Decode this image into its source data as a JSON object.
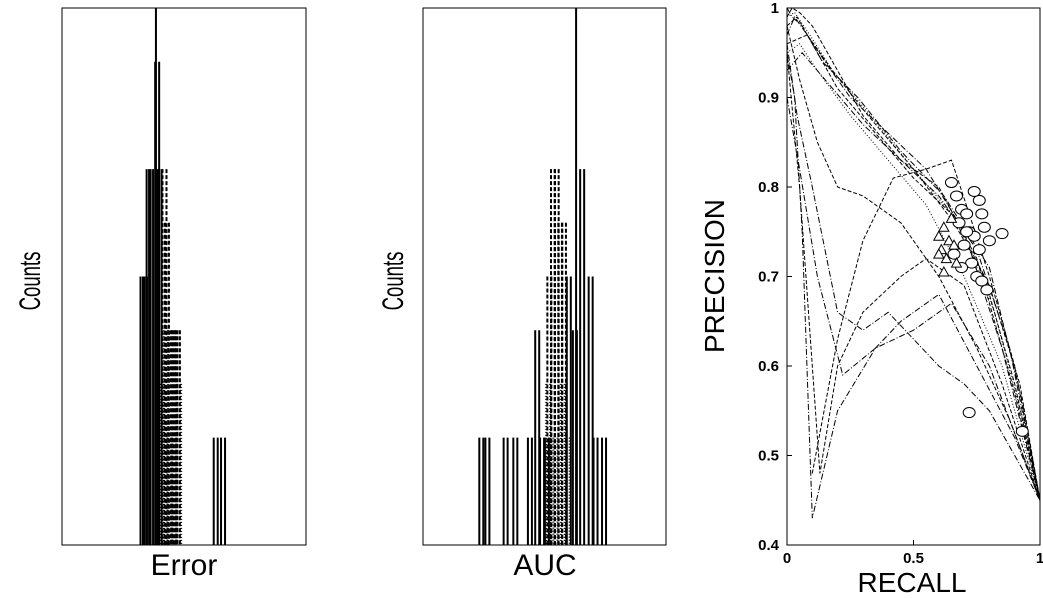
{
  "chart_data": [
    {
      "type": "histogram",
      "xlabel": "Error",
      "ylabel": "Counts",
      "ticks": "none",
      "reference_line": 0.385,
      "series": [
        {
          "style": "solid",
          "bars": [
            {
              "x": 0.33,
              "count": 5
            },
            {
              "x": 0.34,
              "count": 5
            },
            {
              "x": 0.355,
              "count": 7
            },
            {
              "x": 0.365,
              "count": 7
            },
            {
              "x": 0.39,
              "count": 9
            },
            {
              "x": 0.4,
              "count": 7
            },
            {
              "x": 0.63,
              "count": 2
            },
            {
              "x": 0.66,
              "count": 2
            }
          ]
        },
        {
          "style": "dashed",
          "bars": [
            {
              "x": 0.42,
              "count": 7
            },
            {
              "x": 0.43,
              "count": 6
            },
            {
              "x": 0.445,
              "count": 4
            },
            {
              "x": 0.455,
              "count": 4
            },
            {
              "x": 0.465,
              "count": 4
            },
            {
              "x": 0.475,
              "count": 4
            }
          ]
        },
        {
          "style": "dotted",
          "bars": [
            {
              "x": 0.41,
              "count": 3
            },
            {
              "x": 0.425,
              "count": 4
            },
            {
              "x": 0.44,
              "count": 2
            },
            {
              "x": 0.46,
              "count": 2
            },
            {
              "x": 0.48,
              "count": 3
            }
          ]
        }
      ]
    },
    {
      "type": "histogram",
      "xlabel": "AUC",
      "ylabel": "Counts",
      "ticks": "none",
      "reference_line": 0.63,
      "series": [
        {
          "style": "solid",
          "bars": [
            {
              "x": 0.24,
              "count": 2
            },
            {
              "x": 0.265,
              "count": 2
            },
            {
              "x": 0.34,
              "count": 2
            },
            {
              "x": 0.38,
              "count": 2
            },
            {
              "x": 0.44,
              "count": 2
            },
            {
              "x": 0.47,
              "count": 4
            },
            {
              "x": 0.49,
              "count": 2
            },
            {
              "x": 0.51,
              "count": 2
            },
            {
              "x": 0.6,
              "count": 5
            },
            {
              "x": 0.625,
              "count": 4
            },
            {
              "x": 0.655,
              "count": 7
            },
            {
              "x": 0.69,
              "count": 5
            },
            {
              "x": 0.71,
              "count": 2
            },
            {
              "x": 0.745,
              "count": 2
            }
          ]
        },
        {
          "style": "dashed",
          "bars": [
            {
              "x": 0.52,
              "count": 5
            },
            {
              "x": 0.535,
              "count": 7
            },
            {
              "x": 0.55,
              "count": 7
            },
            {
              "x": 0.565,
              "count": 6
            },
            {
              "x": 0.58,
              "count": 6
            }
          ]
        },
        {
          "style": "dotted",
          "bars": [
            {
              "x": 0.515,
              "count": 3
            },
            {
              "x": 0.545,
              "count": 2
            },
            {
              "x": 0.575,
              "count": 3
            },
            {
              "x": 0.595,
              "count": 2
            }
          ]
        }
      ]
    },
    {
      "type": "line",
      "xlabel": "RECALL",
      "ylabel": "PRECISION",
      "xlim": [
        0,
        1
      ],
      "ylim": [
        0.4,
        1
      ],
      "xticks": [
        "0",
        "0.5",
        "1"
      ],
      "yticks": [
        "0.4",
        "0.5",
        "0.6",
        "0.7",
        "0.8",
        "0.9",
        "1"
      ],
      "series": [
        {
          "style": "dashed",
          "x": [
            0,
            0.02,
            0.05,
            0.1,
            0.2,
            0.3,
            0.45,
            0.6,
            0.75,
            0.9,
            1.0
          ],
          "y": [
            0.99,
            1.0,
            0.995,
            0.98,
            0.93,
            0.88,
            0.83,
            0.8,
            0.72,
            0.57,
            0.45
          ]
        },
        {
          "style": "dashdot",
          "x": [
            0,
            0.03,
            0.08,
            0.15,
            0.25,
            0.4,
            0.55,
            0.7,
            0.85,
            1.0
          ],
          "y": [
            0.97,
            0.99,
            0.97,
            0.94,
            0.9,
            0.86,
            0.82,
            0.75,
            0.62,
            0.45
          ]
        },
        {
          "style": "dotted",
          "x": [
            0,
            0.05,
            0.12,
            0.25,
            0.4,
            0.55,
            0.7,
            0.85,
            1.0
          ],
          "y": [
            0.95,
            0.96,
            0.93,
            0.88,
            0.83,
            0.78,
            0.7,
            0.6,
            0.45
          ]
        },
        {
          "style": "dashed",
          "x": [
            0,
            0.04,
            0.1,
            0.2,
            0.35,
            0.5,
            0.65,
            0.8,
            0.92,
            1.0
          ],
          "y": [
            0.98,
            0.99,
            0.96,
            0.91,
            0.86,
            0.81,
            0.77,
            0.69,
            0.58,
            0.45
          ]
        },
        {
          "style": "dashdot",
          "x": [
            0,
            0.06,
            0.15,
            0.3,
            0.45,
            0.6,
            0.75,
            0.88,
            1.0
          ],
          "y": [
            0.93,
            0.95,
            0.92,
            0.87,
            0.83,
            0.79,
            0.73,
            0.62,
            0.45
          ]
        },
        {
          "style": "dotted",
          "x": [
            0,
            0.03,
            0.09,
            0.18,
            0.3,
            0.5,
            0.68,
            0.82,
            0.95,
            1.0
          ],
          "y": [
            0.99,
            0.995,
            0.97,
            0.93,
            0.89,
            0.82,
            0.76,
            0.66,
            0.52,
            0.45
          ]
        },
        {
          "style": "dashed",
          "x": [
            0,
            0.08,
            0.18,
            0.32,
            0.5,
            0.66,
            0.78,
            0.9,
            1.0
          ],
          "y": [
            0.96,
            0.97,
            0.93,
            0.88,
            0.82,
            0.76,
            0.7,
            0.58,
            0.45
          ]
        },
        {
          "style": "dashdot",
          "x": [
            0,
            0.02,
            0.06,
            0.14,
            0.28,
            0.45,
            0.62,
            0.8,
            0.93,
            1.0
          ],
          "y": [
            1.0,
            0.99,
            0.98,
            0.94,
            0.9,
            0.84,
            0.79,
            0.71,
            0.56,
            0.45
          ]
        },
        {
          "style": "dashdot",
          "x": [
            0,
            0.03,
            0.06,
            0.1,
            0.2,
            0.35,
            0.45,
            0.6,
            0.75,
            0.9,
            1.0
          ],
          "y": [
            0.95,
            0.9,
            0.75,
            0.43,
            0.55,
            0.62,
            0.65,
            0.68,
            0.6,
            0.52,
            0.45
          ]
        },
        {
          "style": "dashed",
          "x": [
            0,
            0.05,
            0.1,
            0.13,
            0.2,
            0.3,
            0.45,
            0.55,
            0.7,
            0.85,
            1.0
          ],
          "y": [
            0.95,
            0.8,
            0.6,
            0.48,
            0.6,
            0.66,
            0.7,
            0.72,
            0.69,
            0.58,
            0.45
          ]
        },
        {
          "style": "dashdot",
          "x": [
            0,
            0.05,
            0.12,
            0.22,
            0.35,
            0.5,
            0.65,
            0.8,
            1.0
          ],
          "y": [
            0.9,
            0.82,
            0.7,
            0.59,
            0.62,
            0.64,
            0.67,
            0.6,
            0.45
          ]
        },
        {
          "style": "dashed",
          "x": [
            0,
            0.05,
            0.12,
            0.2,
            0.3,
            0.45,
            0.6,
            0.75,
            0.88,
            1.0
          ],
          "y": [
            0.98,
            0.92,
            0.85,
            0.8,
            0.79,
            0.76,
            0.7,
            0.62,
            0.54,
            0.45
          ]
        },
        {
          "style": "dashdot",
          "x": [
            0,
            0.04,
            0.1,
            0.2,
            0.3,
            0.4,
            0.5,
            0.6,
            0.7,
            0.8,
            1.0
          ],
          "y": [
            0.96,
            0.88,
            0.8,
            0.66,
            0.64,
            0.66,
            0.63,
            0.6,
            0.58,
            0.55,
            0.45
          ]
        },
        {
          "style": "dashed",
          "x": [
            0.1,
            0.2,
            0.3,
            0.42,
            0.55,
            0.65,
            0.72,
            0.8,
            0.9,
            1.0
          ],
          "y": [
            0.48,
            0.63,
            0.74,
            0.81,
            0.82,
            0.83,
            0.77,
            0.7,
            0.6,
            0.45
          ]
        }
      ],
      "markers": [
        {
          "symbol": "circle",
          "points": [
            [
              0.65,
              0.805
            ],
            [
              0.67,
              0.79
            ],
            [
              0.69,
              0.775
            ],
            [
              0.71,
              0.77
            ],
            [
              0.68,
              0.76
            ],
            [
              0.72,
              0.75
            ],
            [
              0.74,
              0.745
            ],
            [
              0.7,
              0.735
            ],
            [
              0.76,
              0.73
            ],
            [
              0.73,
              0.715
            ],
            [
              0.75,
              0.7
            ],
            [
              0.77,
              0.695
            ],
            [
              0.79,
              0.685
            ],
            [
              0.78,
              0.755
            ],
            [
              0.8,
              0.74
            ],
            [
              0.76,
              0.785
            ],
            [
              0.74,
              0.795
            ],
            [
              0.85,
              0.748
            ],
            [
              0.72,
              0.548
            ],
            [
              0.93,
              0.527
            ],
            [
              0.66,
              0.725
            ],
            [
              0.69,
              0.71
            ],
            [
              0.71,
              0.75
            ],
            [
              0.77,
              0.77
            ]
          ]
        },
        {
          "symbol": "triangle",
          "points": [
            [
              0.6,
              0.745
            ],
            [
              0.62,
              0.755
            ],
            [
              0.64,
              0.74
            ],
            [
              0.61,
              0.73
            ],
            [
              0.63,
              0.72
            ],
            [
              0.66,
              0.735
            ],
            [
              0.65,
              0.765
            ],
            [
              0.62,
              0.705
            ],
            [
              0.67,
              0.715
            ],
            [
              0.6,
              0.725
            ]
          ]
        }
      ]
    }
  ]
}
